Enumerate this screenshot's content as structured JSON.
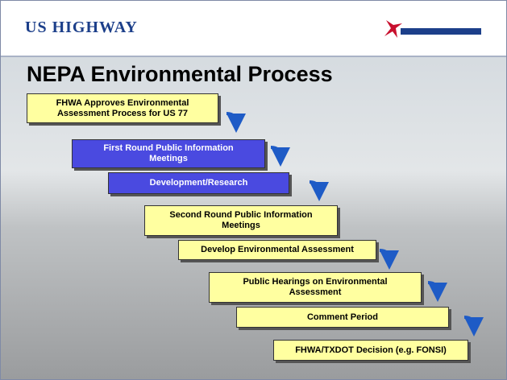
{
  "header": {
    "logo": "US HIGHWAY"
  },
  "title": "NEPA Environmental Process",
  "steps": [
    {
      "label": "FHWA Approves Environmental Assessment Process for US 77",
      "color": "#ffffa0"
    },
    {
      "label": "First Round Public Information Meetings",
      "color": "#4a4ae0"
    },
    {
      "label": "Development/Research",
      "color": "#4a4ae0"
    },
    {
      "label": "Second Round Public Information Meetings",
      "color": "#ffffa0"
    },
    {
      "label": "Develop Environmental Assessment",
      "color": "#ffffa0"
    },
    {
      "label": "Public Hearings on Environmental Assessment",
      "color": "#ffffa0"
    },
    {
      "label": "Comment Period",
      "color": "#ffffa0"
    },
    {
      "label": "FHWA/TXDOT Decision (e.g. FONSI)",
      "color": "#ffffa0"
    }
  ]
}
